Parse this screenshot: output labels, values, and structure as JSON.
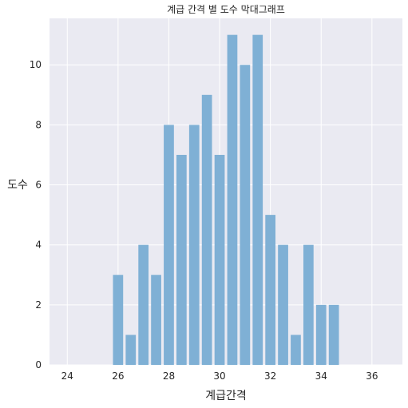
{
  "chart_data": {
    "type": "bar",
    "title": "계급 간격 별 도수 막대그래프",
    "xlabel": "계급간격",
    "ylabel": "도수",
    "x": [
      26.0,
      26.5,
      27.0,
      27.5,
      28.0,
      28.5,
      29.0,
      29.5,
      30.0,
      30.5,
      31.0,
      31.5,
      32.0,
      32.5,
      33.0,
      33.5,
      34.0,
      34.5
    ],
    "values": [
      3,
      1,
      4,
      3,
      8,
      7,
      8,
      9,
      7,
      11,
      10,
      11,
      5,
      4,
      1,
      4,
      2,
      2
    ],
    "xlim": [
      23.3,
      37.2
    ],
    "ylim": [
      0,
      11.55
    ],
    "xticks": [
      24,
      26,
      28,
      30,
      32,
      34,
      36
    ],
    "yticks": [
      0,
      2,
      4,
      6,
      8,
      10
    ],
    "grid": true,
    "bar_color": "#7fb0d5",
    "background_color": "#eaeaf2",
    "grid_color": "#ffffff"
  }
}
